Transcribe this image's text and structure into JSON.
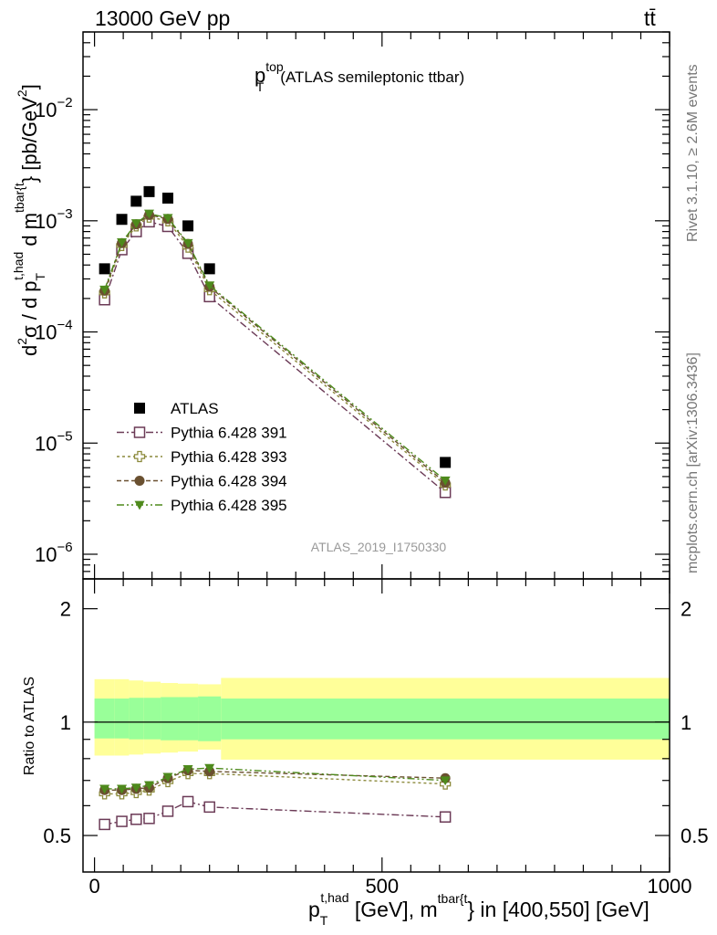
{
  "header": {
    "energy_label": "13000 GeV pp",
    "process_label": "tt̄",
    "side_label_rivet": "Rivet 3.1.10, ≥ 2.6M events",
    "side_label_mcplots": "mcplots.cern.ch [arXiv:1306.3436]",
    "analysis_id": "ATLAS_2019_I1750330"
  },
  "chart_data": [
    {
      "type": "scatter",
      "panel": "main",
      "title": {
        "main": "p",
        "sup": "top",
        "sub": "T",
        "rest": "(ATLAS semileptonic ttbar)"
      },
      "ylabel": {
        "a": "d",
        "a_sup": "2",
        "b": "σ / d p",
        "b_sub": "T",
        "b_sup": "t,had",
        "c": " d m",
        "c_sup": "tbar{t",
        "d": "} [pb/GeV",
        "d_sup": "2",
        "e": "]"
      },
      "yscale": "log",
      "ylim": [
        6e-07,
        0.05
      ],
      "yticks": [
        {
          "value": 1e-06,
          "base": "10",
          "exp": "−6"
        },
        {
          "value": 1e-05,
          "base": "10",
          "exp": "−5"
        },
        {
          "value": 0.0001,
          "base": "10",
          "exp": "−4"
        },
        {
          "value": 0.001,
          "base": "10",
          "exp": "−3"
        },
        {
          "value": 0.01,
          "base": "10",
          "exp": "−2"
        }
      ],
      "xlim": [
        -20,
        1000
      ],
      "x": [
        17.5,
        47.5,
        72.5,
        95,
        127.5,
        162.5,
        200,
        610
      ],
      "series": [
        {
          "name": "ATLAS",
          "color": "#000000",
          "marker": "square-filled",
          "values": [
            0.00037,
            0.00103,
            0.0015,
            0.00183,
            0.0016,
            0.0009,
            0.00037,
            6.7e-06
          ]
        },
        {
          "name": "Pythia 6.428 391",
          "color": "#6b3a56",
          "marker": "square-open",
          "dash": "8,3,2,3",
          "values": [
            0.000195,
            0.00055,
            0.0008,
            0.00098,
            0.00089,
            0.00051,
            0.000208,
            3.6e-06
          ]
        },
        {
          "name": "Pythia 6.428 393",
          "color": "#8c8a3c",
          "marker": "cross-open",
          "dash": "3,3",
          "values": [
            0.000225,
            0.0006,
            0.0009,
            0.00108,
            0.001,
            0.00058,
            0.00024,
            4.2e-06
          ]
        },
        {
          "name": "Pythia 6.428 394",
          "color": "#6a5030",
          "marker": "circle-filled",
          "dash": "5,3",
          "values": [
            0.000235,
            0.00063,
            0.00093,
            0.00113,
            0.00104,
            0.00062,
            0.000255,
            4.4e-06
          ]
        },
        {
          "name": "Pythia 6.428 395",
          "color": "#4e8a1c",
          "marker": "triangle-down-filled",
          "dash": "8,3,2,3,2,3",
          "values": [
            0.00024,
            0.00064,
            0.00095,
            0.00116,
            0.00106,
            0.00063,
            0.000262,
            4.6e-06
          ]
        }
      ]
    },
    {
      "type": "scatter",
      "panel": "ratio",
      "ylabel": "Ratio to ATLAS",
      "yscale": "log",
      "ylim": [
        0.4,
        2.4
      ],
      "yticks": [
        {
          "value": 0.5,
          "label": "0.5"
        },
        {
          "value": 1,
          "label": "1"
        },
        {
          "value": 2,
          "label": "2"
        }
      ],
      "xlim": [
        -20,
        1000
      ],
      "xticks": [
        {
          "value": 0,
          "label": "0"
        },
        {
          "value": 500,
          "label": "500"
        },
        {
          "value": 1000,
          "label": "1000"
        }
      ],
      "xlabel": {
        "a": "p",
        "a_sub": "T",
        "a_sup": "t,had",
        "b": " [GeV], m",
        "b_sup": "tbar{t",
        "c": "} in [400,550] [GeV]"
      },
      "bands": {
        "edges": [
          0,
          35,
          60,
          85,
          115,
          145,
          180,
          220,
          1000
        ],
        "inner_color": "#99ff99",
        "outer_color": "#ffff99",
        "inner_lo": [
          0.905,
          0.905,
          0.9,
          0.9,
          0.895,
          0.895,
          0.89,
          0.9
        ],
        "inner_hi": [
          1.155,
          1.155,
          1.16,
          1.16,
          1.165,
          1.165,
          1.17,
          1.155
        ],
        "outer_lo": [
          0.815,
          0.815,
          0.82,
          0.825,
          0.83,
          0.835,
          0.845,
          0.795
        ],
        "outer_hi": [
          1.3,
          1.3,
          1.29,
          1.28,
          1.27,
          1.265,
          1.26,
          1.31
        ]
      },
      "x": [
        17.5,
        47.5,
        72.5,
        95,
        127.5,
        162.5,
        200,
        610
      ],
      "series": [
        {
          "name": "Pythia 6.428 391",
          "values": [
            0.535,
            0.545,
            0.552,
            0.555,
            0.58,
            0.615,
            0.595,
            0.56
          ]
        },
        {
          "name": "Pythia 6.428 393",
          "values": [
            0.645,
            0.645,
            0.65,
            0.66,
            0.695,
            0.73,
            0.73,
            0.685
          ]
        },
        {
          "name": "Pythia 6.428 394",
          "values": [
            0.66,
            0.66,
            0.665,
            0.67,
            0.71,
            0.745,
            0.74,
            0.71
          ]
        },
        {
          "name": "Pythia 6.428 395",
          "values": [
            0.665,
            0.665,
            0.67,
            0.68,
            0.715,
            0.75,
            0.755,
            0.7
          ]
        }
      ]
    }
  ]
}
